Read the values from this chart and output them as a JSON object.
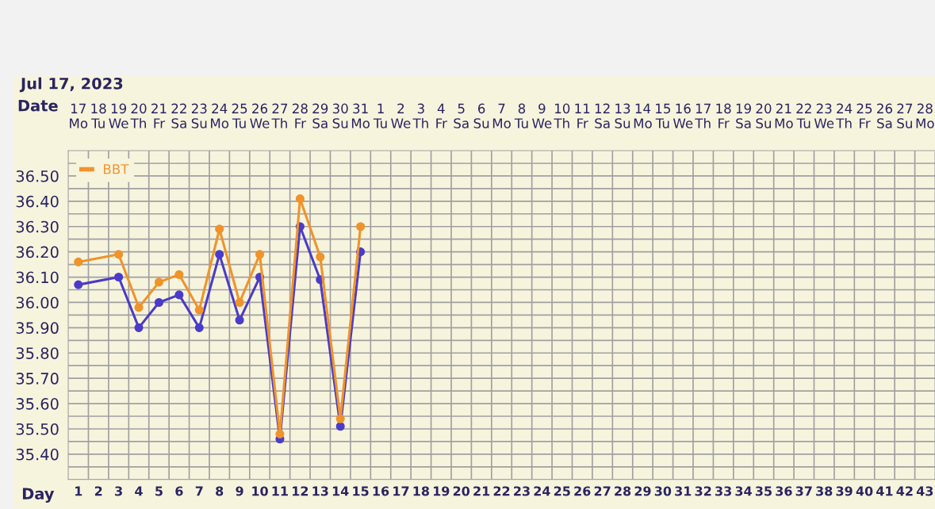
{
  "chart_data": {
    "type": "line",
    "title": "Jul 17, 2023",
    "xlabel": "Day",
    "x2label": "Date",
    "categories": [
      "1",
      "2",
      "3",
      "4",
      "5",
      "6",
      "7",
      "8",
      "9",
      "10",
      "11",
      "12",
      "13",
      "14",
      "15",
      "16",
      "17",
      "18",
      "19",
      "20",
      "21",
      "22",
      "23",
      "24",
      "25",
      "26",
      "27",
      "28",
      "29",
      "30",
      "31",
      "32",
      "33",
      "34",
      "35",
      "36",
      "37",
      "38",
      "39",
      "40",
      "41",
      "42",
      "43"
    ],
    "series": [
      {
        "name": "BBT",
        "color": "#f0932b",
        "values": [
          36.16,
          null,
          36.19,
          35.98,
          36.08,
          36.11,
          35.97,
          36.29,
          36.0,
          36.19,
          35.48,
          36.41,
          36.18,
          35.54,
          36.3,
          null,
          null,
          null,
          null,
          null,
          null,
          null,
          null,
          null,
          null,
          null,
          null,
          null,
          null,
          null,
          null,
          null,
          null,
          null,
          null,
          null,
          null,
          null,
          null,
          null,
          null,
          null,
          null
        ]
      },
      {
        "color": "#4b3cc8",
        "values": [
          36.07,
          null,
          36.1,
          35.9,
          36.0,
          36.03,
          35.9,
          36.19,
          35.93,
          36.1,
          35.46,
          36.3,
          36.09,
          35.51,
          36.2,
          null,
          null,
          null,
          null,
          null,
          null,
          null,
          null,
          null,
          null,
          null,
          null,
          null,
          null,
          null,
          null,
          null,
          null,
          null,
          null,
          null,
          null,
          null,
          null,
          null,
          null,
          null,
          null
        ]
      }
    ],
    "x2lim": [
      "2023-07-16T12:00",
      "2023-08-28T12:00"
    ],
    "x2ticks": [
      {
        "value": "2023-07-17",
        "label": "17\nMo"
      },
      {
        "value": "2023-07-18",
        "label": "18\nTu"
      },
      {
        "value": "2023-07-19",
        "label": "19\nWe"
      },
      {
        "value": "2023-07-20",
        "label": "20\nTh"
      },
      {
        "value": "2023-07-21",
        "label": "21\nFr"
      },
      {
        "value": "2023-07-22",
        "label": "22\nSa"
      },
      {
        "value": "2023-07-23",
        "label": "23\nSu"
      },
      {
        "value": "2023-07-24",
        "label": "24\nMo"
      },
      {
        "value": "2023-07-25",
        "label": "25\nTu"
      },
      {
        "value": "2023-07-26",
        "label": "26\nWe"
      },
      {
        "value": "2023-07-27",
        "label": "27\nTh"
      },
      {
        "value": "2023-07-28",
        "label": "28\nFr"
      },
      {
        "value": "2023-07-29",
        "label": "29\nSa"
      },
      {
        "value": "2023-07-30",
        "label": "30\nSu"
      },
      {
        "value": "2023-07-31",
        "label": "31\nMo"
      },
      {
        "value": "2023-08-01",
        "label": "1\nTu"
      },
      {
        "value": "2023-08-02",
        "label": "2\nWe"
      },
      {
        "value": "2023-08-03",
        "label": "3\nTh"
      },
      {
        "value": "2023-08-04",
        "label": "4\nFr"
      },
      {
        "value": "2023-08-05",
        "label": "5\nSa"
      },
      {
        "value": "2023-08-06",
        "label": "6\nSu"
      },
      {
        "value": "2023-08-07",
        "label": "7\nMo"
      },
      {
        "value": "2023-08-08",
        "label": "8\nTu"
      },
      {
        "value": "2023-08-09",
        "label": "9\nWe"
      },
      {
        "value": "2023-08-10",
        "label": "10\nTh"
      },
      {
        "value": "2023-08-11",
        "label": "11\nFr"
      },
      {
        "value": "2023-08-12",
        "label": "12\nSa"
      },
      {
        "value": "2023-08-13",
        "label": "13\nSu"
      },
      {
        "value": "2023-08-14",
        "label": "14\nMo"
      },
      {
        "value": "2023-08-15",
        "label": "15\nTu"
      },
      {
        "value": "2023-08-16",
        "label": "16\nWe"
      },
      {
        "value": "2023-08-17",
        "label": "17\nTh"
      },
      {
        "value": "2023-08-18",
        "label": "18\nFr"
      },
      {
        "value": "2023-08-19",
        "label": "19\nSa"
      },
      {
        "value": "2023-08-20",
        "label": "20\nSu"
      },
      {
        "value": "2023-08-21",
        "label": "21\nMo"
      },
      {
        "value": "2023-08-22",
        "label": "22\nTu"
      },
      {
        "value": "2023-08-23",
        "label": "23\nWe"
      },
      {
        "value": "2023-08-24",
        "label": "24\nTh"
      },
      {
        "value": "2023-08-25",
        "label": "25\nFr"
      },
      {
        "value": "2023-08-26",
        "label": "26\nSa"
      },
      {
        "value": "2023-08-27",
        "label": "27\nSu"
      },
      {
        "value": "2023-08-28",
        "label": "28\nMo"
      }
    ],
    "ylim": [
      35.3,
      36.6
    ],
    "yticks": [
      {
        "value": 35.3,
        "label": null
      },
      {
        "value": 35.35,
        "label": null
      },
      {
        "value": 35.4,
        "label": "35.40"
      },
      {
        "value": 35.45,
        "label": null
      },
      {
        "value": 35.5,
        "label": "35.50"
      },
      {
        "value": 35.55,
        "label": null
      },
      {
        "value": 35.6,
        "label": "35.60"
      },
      {
        "value": 35.65,
        "label": null
      },
      {
        "value": 35.7,
        "label": "35.70"
      },
      {
        "value": 35.75,
        "label": null
      },
      {
        "value": 35.8,
        "label": "35.80"
      },
      {
        "value": 35.85,
        "label": null
      },
      {
        "value": 35.9,
        "label": "35.90"
      },
      {
        "value": 35.95,
        "label": null
      },
      {
        "value": 36.0,
        "label": "36.00"
      },
      {
        "value": 36.05,
        "label": null
      },
      {
        "value": 36.1,
        "label": "36.10"
      },
      {
        "value": 36.15,
        "label": null
      },
      {
        "value": 36.2,
        "label": "36.20"
      },
      {
        "value": 36.25,
        "label": null
      },
      {
        "value": 36.3,
        "label": "36.30"
      },
      {
        "value": 36.35,
        "label": null
      },
      {
        "value": 36.4,
        "label": "36.40"
      },
      {
        "value": 36.45,
        "label": null
      },
      {
        "value": 36.5,
        "label": "36.50"
      },
      {
        "value": 36.55,
        "label": null
      }
    ],
    "grid": true,
    "legend": "top left",
    "marker": "circle",
    "line_style": "solid"
  }
}
